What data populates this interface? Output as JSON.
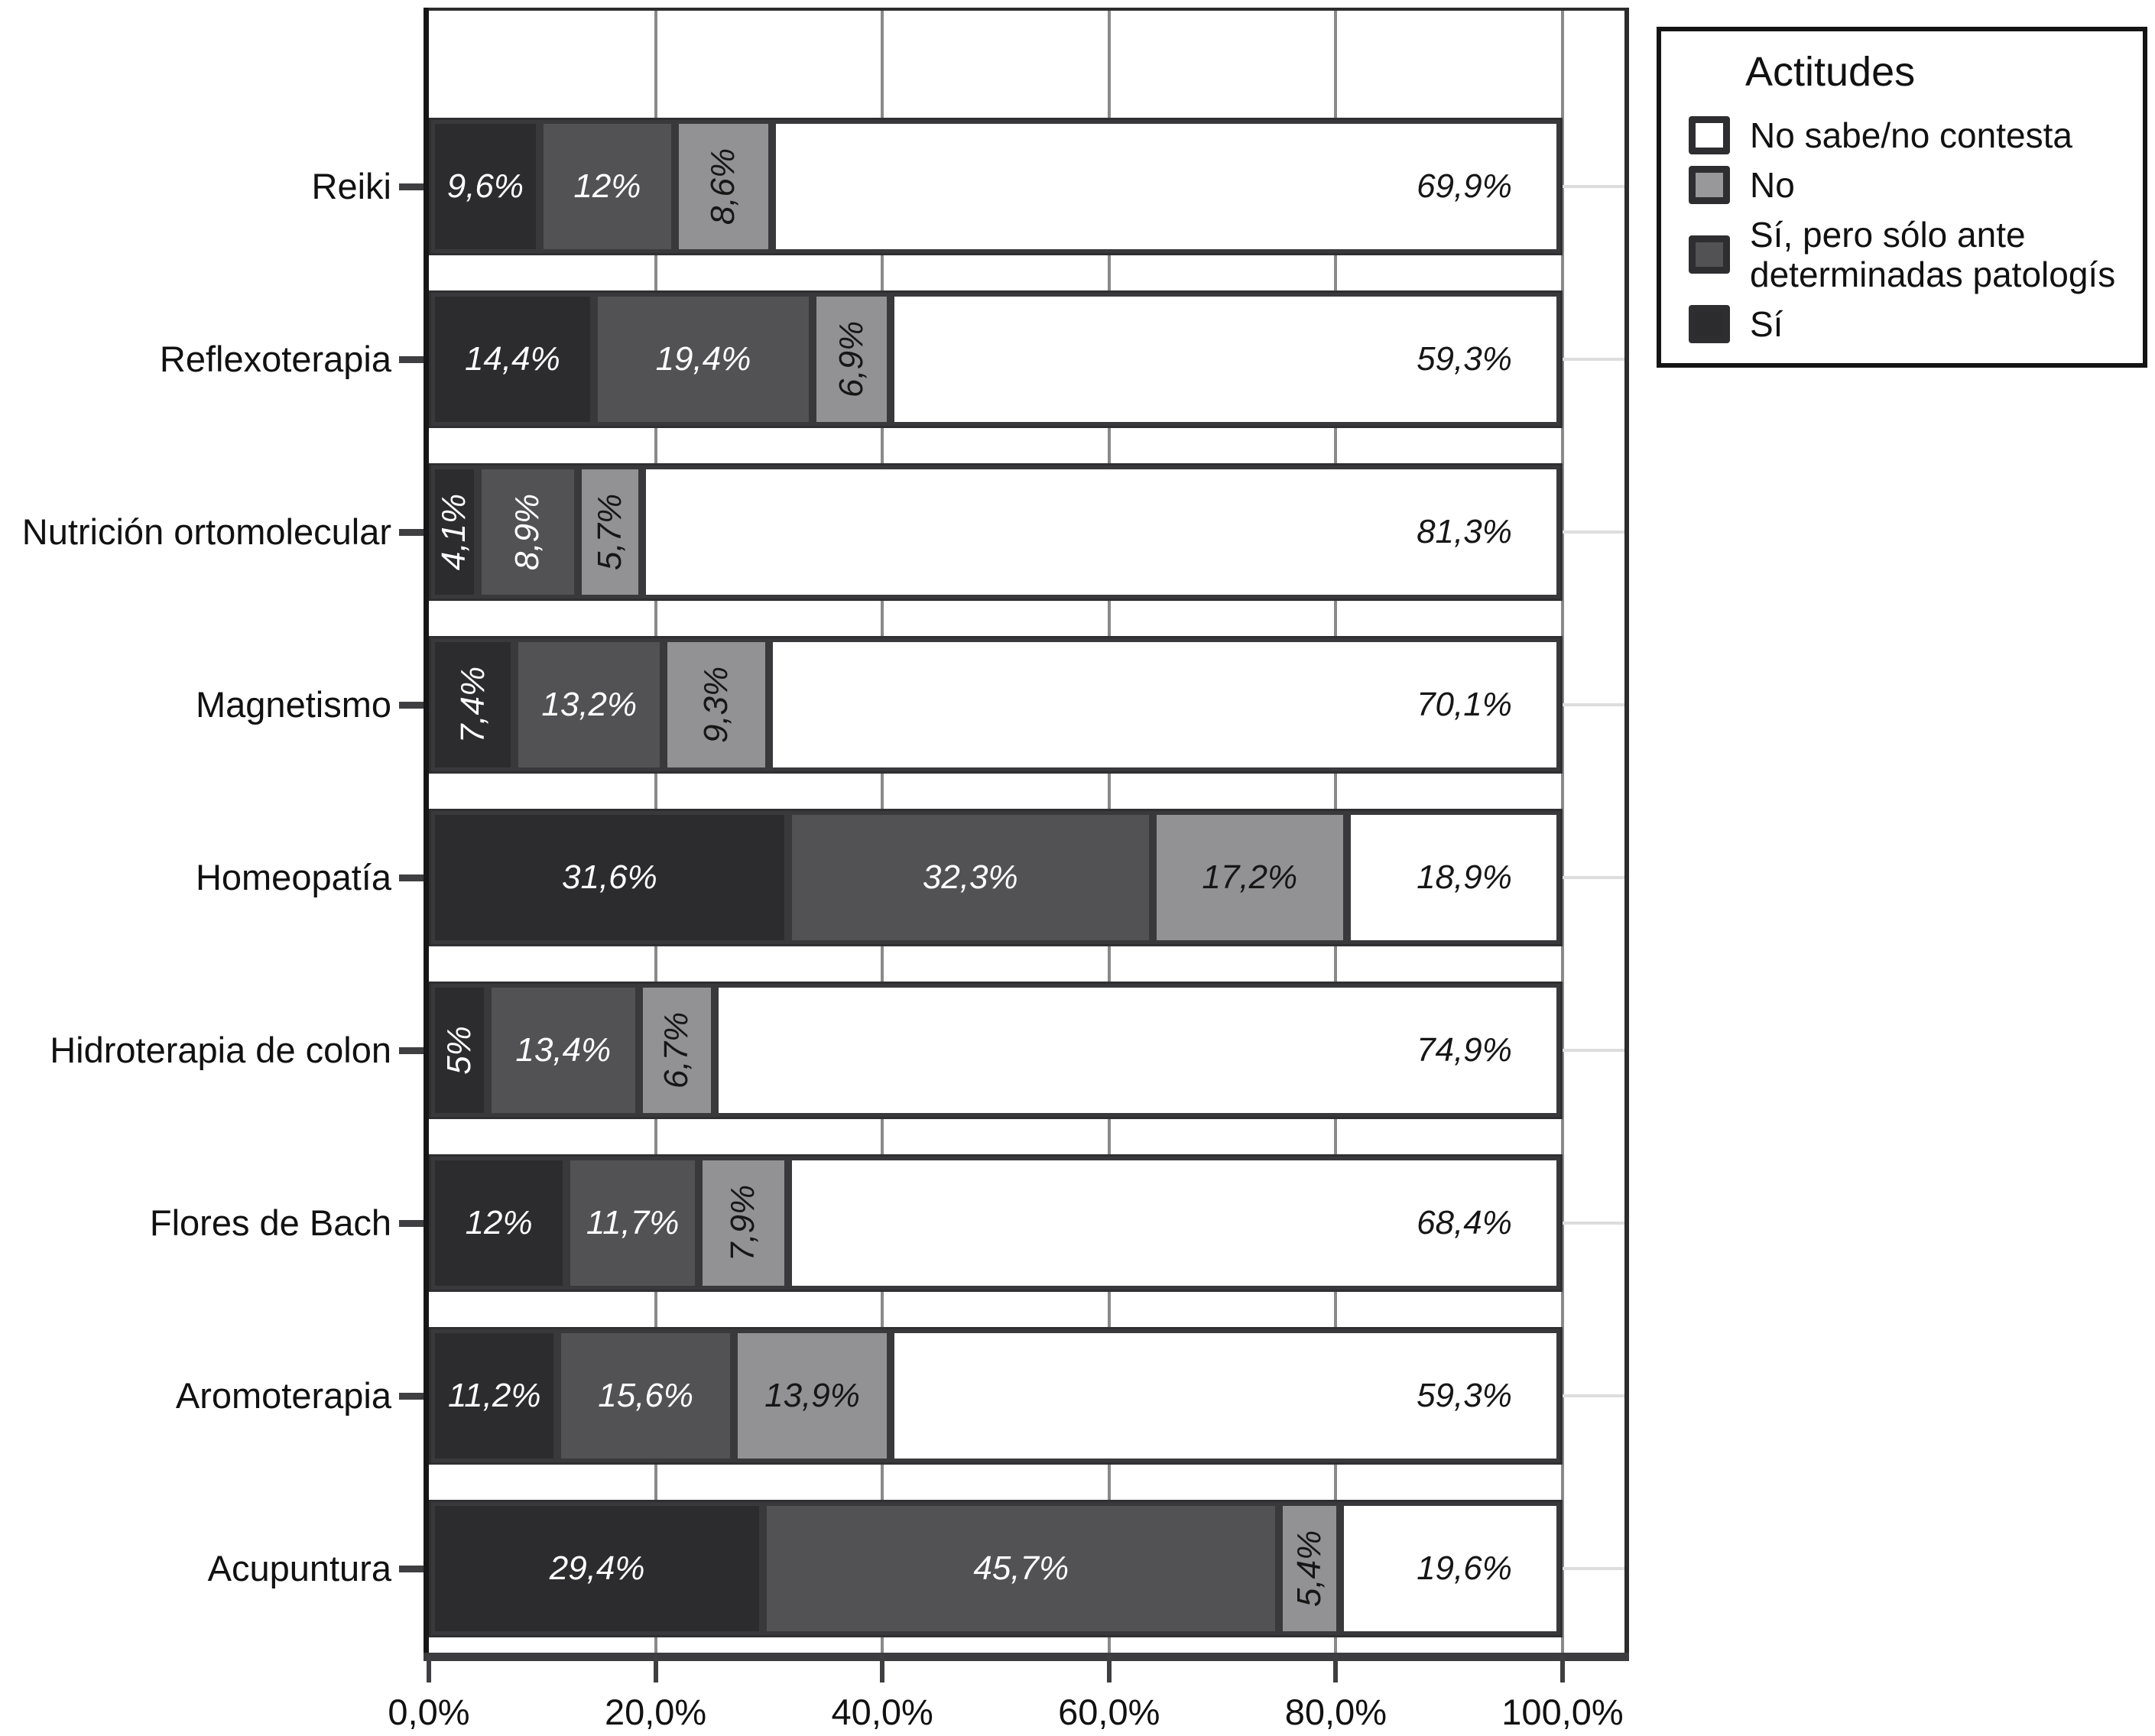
{
  "legend": {
    "title": "Actitudes"
  },
  "chart_data": {
    "type": "bar",
    "orientation": "horizontal",
    "stacked": true,
    "title": "",
    "xlabel": "",
    "ylabel": "",
    "grid": "vertical",
    "legend_position": "top-right",
    "legend_title": "Actitudes",
    "x_axis": {
      "ticks": [
        "0,0%",
        "20,0%",
        "40,0%",
        "60,0%",
        "80,0%",
        "100,0%"
      ],
      "tick_values": [
        0,
        20,
        40,
        60,
        80,
        100
      ],
      "range": [
        0,
        100
      ]
    },
    "categories": [
      "Reiki",
      "Reflexoterapia",
      "Nutrición ortomolecular",
      "Magnetismo",
      "Homeopatía",
      "Hidroterapia de colon",
      "Flores de Bach",
      "Aromoterapia",
      "Acupuntura"
    ],
    "series": [
      {
        "name": "Sí",
        "values": [
          9.6,
          14.4,
          4.1,
          7.4,
          31.6,
          5,
          12,
          11.2,
          29.4
        ]
      },
      {
        "name": "Sí, pero sólo ante determinadas patologís",
        "values": [
          12,
          19.4,
          8.9,
          13.2,
          32.3,
          13.4,
          11.7,
          15.6,
          45.7
        ]
      },
      {
        "name": "No",
        "values": [
          8.6,
          6.9,
          5.7,
          9.3,
          17.2,
          6.7,
          7.9,
          13.9,
          5.4
        ]
      },
      {
        "name": "No sabe/no contesta",
        "values": [
          69.9,
          59.3,
          81.3,
          70.1,
          18.9,
          74.9,
          68.4,
          59.3,
          19.6
        ]
      }
    ],
    "series_meta": {
      "si": {
        "label": "Sí",
        "color": "#2c2c2e",
        "text_color": "#ffffff"
      },
      "si_solo": {
        "label": "Sí, pero sólo ante determinadas patologís",
        "color": "#525254",
        "text_color": "#ffffff"
      },
      "no": {
        "label": "No",
        "color": "#929295",
        "text_color": "#161616"
      },
      "nsnc": {
        "label": "No sabe/no contesta",
        "color": "#ffffff",
        "text_color": "#161616"
      }
    },
    "legend_entries": [
      {
        "key": "nsnc",
        "label": "No sabe/no contesta",
        "color": "#ffffff"
      },
      {
        "key": "no",
        "label": "No",
        "color": "#98989b"
      },
      {
        "key": "si_solo",
        "label": "Sí, pero sólo ante determinadas patologís",
        "color": "#525254"
      },
      {
        "key": "si",
        "label": "Sí",
        "color": "#2c2c2e"
      }
    ],
    "rows": [
      {
        "category": "Reiki",
        "si": {
          "v": 9.6,
          "label": "9,6%",
          "rot": false
        },
        "si_solo": {
          "v": 12,
          "label": "12%",
          "rot": false
        },
        "no": {
          "v": 8.6,
          "label": "8,6%",
          "rot": true
        },
        "nsnc": {
          "label": "69,9%"
        }
      },
      {
        "category": "Reflexoterapia",
        "si": {
          "v": 14.4,
          "label": "14,4%",
          "rot": false
        },
        "si_solo": {
          "v": 19.4,
          "label": "19,4%",
          "rot": false
        },
        "no": {
          "v": 6.9,
          "label": "6,9%",
          "rot": true
        },
        "nsnc": {
          "label": "59,3%"
        }
      },
      {
        "category": "Nutrición ortomolecular",
        "si": {
          "v": 4.1,
          "label": "4,1%",
          "rot": true
        },
        "si_solo": {
          "v": 8.9,
          "label": "8,9%",
          "rot": true
        },
        "no": {
          "v": 5.7,
          "label": "5,7%",
          "rot": true
        },
        "nsnc": {
          "label": "81,3%"
        }
      },
      {
        "category": "Magnetismo",
        "si": {
          "v": 7.4,
          "label": "7,4%",
          "rot": true
        },
        "si_solo": {
          "v": 13.2,
          "label": "13,2%",
          "rot": false
        },
        "no": {
          "v": 9.3,
          "label": "9,3%",
          "rot": true
        },
        "nsnc": {
          "label": "70,1%"
        }
      },
      {
        "category": "Homeopatía",
        "si": {
          "v": 31.6,
          "label": "31,6%",
          "rot": false
        },
        "si_solo": {
          "v": 32.3,
          "label": "32,3%",
          "rot": false
        },
        "no": {
          "v": 17.2,
          "label": "17,2%",
          "rot": false
        },
        "nsnc": {
          "label": "18,9%"
        }
      },
      {
        "category": "Hidroterapia de colon",
        "si": {
          "v": 5,
          "label": "5%",
          "rot": true
        },
        "si_solo": {
          "v": 13.4,
          "label": "13,4%",
          "rot": false
        },
        "no": {
          "v": 6.7,
          "label": "6,7%",
          "rot": true
        },
        "nsnc": {
          "label": "74,9%"
        }
      },
      {
        "category": "Flores de Bach",
        "si": {
          "v": 12,
          "label": "12%",
          "rot": false
        },
        "si_solo": {
          "v": 11.7,
          "label": "11,7%",
          "rot": false
        },
        "no": {
          "v": 7.9,
          "label": "7,9%",
          "rot": true
        },
        "nsnc": {
          "label": "68,4%"
        }
      },
      {
        "category": "Aromoterapia",
        "si": {
          "v": 11.2,
          "label": "11,2%",
          "rot": false
        },
        "si_solo": {
          "v": 15.6,
          "label": "15,6%",
          "rot": false
        },
        "no": {
          "v": 13.9,
          "label": "13,9%",
          "rot": false
        },
        "nsnc": {
          "label": "59,3%"
        }
      },
      {
        "category": "Acupuntura",
        "si": {
          "v": 29.4,
          "label": "29,4%",
          "rot": false
        },
        "si_solo": {
          "v": 45.7,
          "label": "45,7%",
          "rot": false
        },
        "no": {
          "v": 5.4,
          "label": "5,4%",
          "rot": true
        },
        "nsnc": {
          "label": "19,6%"
        }
      }
    ]
  }
}
